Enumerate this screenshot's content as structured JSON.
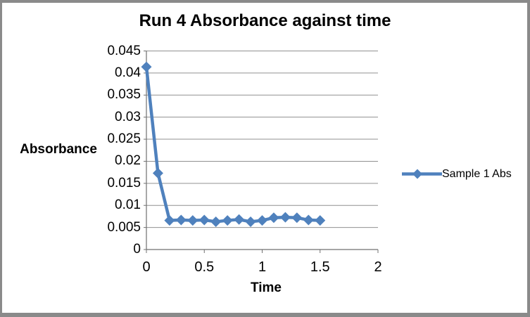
{
  "chart_data": {
    "type": "line",
    "title": "Run 4 Absorbance against time",
    "xlabel": "Time",
    "ylabel": "Absorbance",
    "xlim": [
      0,
      2
    ],
    "ylim": [
      0,
      0.045
    ],
    "grid": "horizontal-only",
    "legend_position": "right-middle",
    "x_tick_labels": [
      "0",
      "0.5",
      "1",
      "1.5",
      "2"
    ],
    "x_tick_values": [
      0,
      0.5,
      1,
      1.5,
      2
    ],
    "y_tick_labels": [
      "0",
      "0.005",
      "0.01",
      "0.015",
      "0.02",
      "0.025",
      "0.03",
      "0.035",
      "0.04",
      "0.045"
    ],
    "y_tick_values": [
      0,
      0.005,
      0.01,
      0.015,
      0.02,
      0.025,
      0.03,
      0.035,
      0.04,
      0.045
    ],
    "series": [
      {
        "name": "Sample 1 Abs",
        "marker": "diamond",
        "color": "#4F81BD",
        "x": [
          0,
          0.1,
          0.2,
          0.3,
          0.4,
          0.5,
          0.6,
          0.7,
          0.8,
          0.9,
          1.0,
          1.1,
          1.2,
          1.3,
          1.4,
          1.5
        ],
        "y": [
          0.0414,
          0.0173,
          0.0066,
          0.0067,
          0.0066,
          0.0067,
          0.0063,
          0.0066,
          0.0068,
          0.0063,
          0.0066,
          0.0072,
          0.0073,
          0.0072,
          0.0067,
          0.0066
        ]
      }
    ]
  },
  "colors": {
    "series": "#4F81BD",
    "gridline": "#909090",
    "axis": "#707070",
    "frame": "#8a8a8a",
    "text": "#000000",
    "background": "#ffffff"
  }
}
